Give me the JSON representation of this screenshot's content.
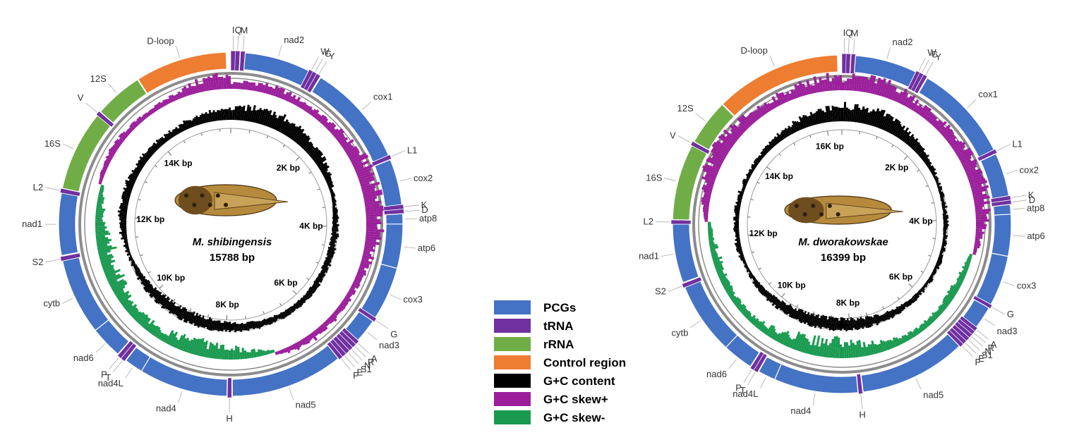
{
  "colors": {
    "PCGs": "#4472c4",
    "tRNA": "#7030a0",
    "rRNA": "#70ad47",
    "Control region": "#ed7d31",
    "G+C content": "#000000",
    "G+C skew+": "#9b1f9b",
    "G+C skew-": "#1a9a50"
  },
  "legend": [
    {
      "label": "PCGs",
      "color": "#4472c4"
    },
    {
      "label": "tRNA",
      "color": "#7030a0"
    },
    {
      "label": "rRNA",
      "color": "#70ad47"
    },
    {
      "label": "Control region",
      "color": "#ed7d31"
    },
    {
      "label": "G+C content",
      "color": "#000000"
    },
    {
      "label": "G+C skew+",
      "color": "#9b1f9b"
    },
    {
      "label": "G+C skew-",
      "color": "#1a9a50"
    }
  ],
  "maps": [
    {
      "species": "M. shibingensis",
      "length": "15788  bp",
      "length_bp": 15788,
      "tick_labels": [
        "2K bp",
        "4K bp",
        "6K bp",
        "8K bp",
        "10K bp",
        "12K bp",
        "14K bp"
      ],
      "tick_values": [
        2000,
        4000,
        6000,
        8000,
        10000,
        12000,
        14000
      ],
      "features": [
        {
          "name": "I",
          "type": "tRNA",
          "start": 0,
          "end": 68
        },
        {
          "name": "Q",
          "type": "tRNA",
          "start": 66,
          "end": 134
        },
        {
          "name": "M",
          "type": "tRNA",
          "start": 144,
          "end": 212
        },
        {
          "name": "nad2",
          "type": "PCGs",
          "start": 212,
          "end": 1180
        },
        {
          "name": "W",
          "type": "tRNA",
          "start": 1180,
          "end": 1246
        },
        {
          "name": "C",
          "type": "tRNA",
          "start": 1240,
          "end": 1302
        },
        {
          "name": "Y",
          "type": "tRNA",
          "start": 1304,
          "end": 1366
        },
        {
          "name": "cox1",
          "type": "PCGs",
          "start": 1380,
          "end": 2910
        },
        {
          "name": "L1",
          "type": "tRNA",
          "start": 2910,
          "end": 2974
        },
        {
          "name": "cox2",
          "type": "PCGs",
          "start": 2980,
          "end": 3660
        },
        {
          "name": "K",
          "type": "tRNA",
          "start": 3660,
          "end": 3726
        },
        {
          "name": "D",
          "type": "tRNA",
          "start": 3728,
          "end": 3794
        },
        {
          "name": "atp8",
          "type": "PCGs",
          "start": 3794,
          "end": 3950
        },
        {
          "name": "atp6",
          "type": "PCGs",
          "start": 3945,
          "end": 4600
        },
        {
          "name": "cox3",
          "type": "PCGs",
          "start": 4600,
          "end": 5390
        },
        {
          "name": "G",
          "type": "tRNA",
          "start": 5390,
          "end": 5452
        },
        {
          "name": "nad3",
          "type": "PCGs",
          "start": 5452,
          "end": 5806
        },
        {
          "name": "A",
          "type": "tRNA",
          "start": 5806,
          "end": 5868
        },
        {
          "name": "R",
          "type": "tRNA",
          "start": 5870,
          "end": 5932
        },
        {
          "name": "N",
          "type": "tRNA",
          "start": 5934,
          "end": 5998
        },
        {
          "name": "S1",
          "type": "tRNA",
          "start": 6000,
          "end": 6066
        },
        {
          "name": "E",
          "type": "tRNA",
          "start": 6068,
          "end": 6132
        },
        {
          "name": "F",
          "type": "tRNA",
          "start": 6134,
          "end": 6198
        },
        {
          "name": "nad5",
          "type": "PCGs",
          "start": 6198,
          "end": 7870
        },
        {
          "name": "H",
          "type": "tRNA",
          "start": 7880,
          "end": 7944
        },
        {
          "name": "nad4",
          "type": "PCGs",
          "start": 7950,
          "end": 9270
        },
        {
          "name": "nad4L",
          "type": "PCGs",
          "start": 9265,
          "end": 9540
        },
        {
          "name": "T",
          "type": "tRNA",
          "start": 9550,
          "end": 9614
        },
        {
          "name": "P",
          "type": "tRNA",
          "start": 9616,
          "end": 9680
        },
        {
          "name": "nad6",
          "type": "PCGs",
          "start": 9690,
          "end": 10170
        },
        {
          "name": "cytb",
          "type": "PCGs",
          "start": 10170,
          "end": 11300
        },
        {
          "name": "S2",
          "type": "tRNA",
          "start": 11300,
          "end": 11366
        },
        {
          "name": "nad1",
          "type": "PCGs",
          "start": 11380,
          "end": 12300
        },
        {
          "name": "L2",
          "type": "tRNA",
          "start": 12300,
          "end": 12366
        },
        {
          "name": "16S",
          "type": "rRNA",
          "start": 12370,
          "end": 13560
        },
        {
          "name": "V",
          "type": "tRNA",
          "start": 13560,
          "end": 13624
        },
        {
          "name": "12S",
          "type": "rRNA",
          "start": 13630,
          "end": 14350
        },
        {
          "name": "D-loop",
          "type": "Control region",
          "start": 14360,
          "end": 15720
        }
      ]
    },
    {
      "species": "M. dworakowskae",
      "length": "16399  bp",
      "length_bp": 16399,
      "tick_labels": [
        "2K bp",
        "4K bp",
        "6K bp",
        "8K bp",
        "10K bp",
        "12K bp",
        "14K bp",
        "16K bp"
      ],
      "tick_values": [
        2000,
        4000,
        6000,
        8000,
        10000,
        12000,
        14000,
        16000
      ],
      "features": [
        {
          "name": "I",
          "type": "tRNA",
          "start": 0,
          "end": 68
        },
        {
          "name": "Q",
          "type": "tRNA",
          "start": 66,
          "end": 134
        },
        {
          "name": "M",
          "type": "tRNA",
          "start": 144,
          "end": 212
        },
        {
          "name": "nad2",
          "type": "PCGs",
          "start": 212,
          "end": 1180
        },
        {
          "name": "W",
          "type": "tRNA",
          "start": 1180,
          "end": 1246
        },
        {
          "name": "C",
          "type": "tRNA",
          "start": 1240,
          "end": 1302
        },
        {
          "name": "Y",
          "type": "tRNA",
          "start": 1304,
          "end": 1366
        },
        {
          "name": "cox1",
          "type": "PCGs",
          "start": 1380,
          "end": 2910
        },
        {
          "name": "L1",
          "type": "tRNA",
          "start": 2910,
          "end": 2974
        },
        {
          "name": "cox2",
          "type": "PCGs",
          "start": 2980,
          "end": 3660
        },
        {
          "name": "K",
          "type": "tRNA",
          "start": 3660,
          "end": 3726
        },
        {
          "name": "D",
          "type": "tRNA",
          "start": 3728,
          "end": 3794
        },
        {
          "name": "atp8",
          "type": "PCGs",
          "start": 3794,
          "end": 3950
        },
        {
          "name": "atp6",
          "type": "PCGs",
          "start": 3945,
          "end": 4600
        },
        {
          "name": "cox3",
          "type": "PCGs",
          "start": 4600,
          "end": 5390
        },
        {
          "name": "G",
          "type": "tRNA",
          "start": 5390,
          "end": 5452
        },
        {
          "name": "nad3",
          "type": "PCGs",
          "start": 5452,
          "end": 5806
        },
        {
          "name": "A",
          "type": "tRNA",
          "start": 5806,
          "end": 5868
        },
        {
          "name": "R",
          "type": "tRNA",
          "start": 5870,
          "end": 5932
        },
        {
          "name": "N",
          "type": "tRNA",
          "start": 5934,
          "end": 5998
        },
        {
          "name": "S1",
          "type": "tRNA",
          "start": 6000,
          "end": 6066
        },
        {
          "name": "E",
          "type": "tRNA",
          "start": 6068,
          "end": 6132
        },
        {
          "name": "F",
          "type": "tRNA",
          "start": 6134,
          "end": 6198
        },
        {
          "name": "nad5",
          "type": "PCGs",
          "start": 6198,
          "end": 7870
        },
        {
          "name": "H",
          "type": "tRNA",
          "start": 7880,
          "end": 7944
        },
        {
          "name": "nad4",
          "type": "PCGs",
          "start": 7950,
          "end": 9270
        },
        {
          "name": "nad4L",
          "type": "PCGs",
          "start": 9265,
          "end": 9540
        },
        {
          "name": "T",
          "type": "tRNA",
          "start": 9550,
          "end": 9614
        },
        {
          "name": "P",
          "type": "tRNA",
          "start": 9616,
          "end": 9680
        },
        {
          "name": "nad6",
          "type": "PCGs",
          "start": 9690,
          "end": 10170
        },
        {
          "name": "cytb",
          "type": "PCGs",
          "start": 10170,
          "end": 11300
        },
        {
          "name": "S2",
          "type": "tRNA",
          "start": 11300,
          "end": 11366
        },
        {
          "name": "nad1",
          "type": "PCGs",
          "start": 11380,
          "end": 12300
        },
        {
          "name": "L2",
          "type": "tRNA",
          "start": 12300,
          "end": 12366
        },
        {
          "name": "16S",
          "type": "rRNA",
          "start": 12370,
          "end": 13560
        },
        {
          "name": "V",
          "type": "tRNA",
          "start": 13560,
          "end": 13624
        },
        {
          "name": "12S",
          "type": "rRNA",
          "start": 13630,
          "end": 14350
        },
        {
          "name": "D-loop",
          "type": "Control region",
          "start": 14360,
          "end": 16330
        }
      ]
    }
  ]
}
